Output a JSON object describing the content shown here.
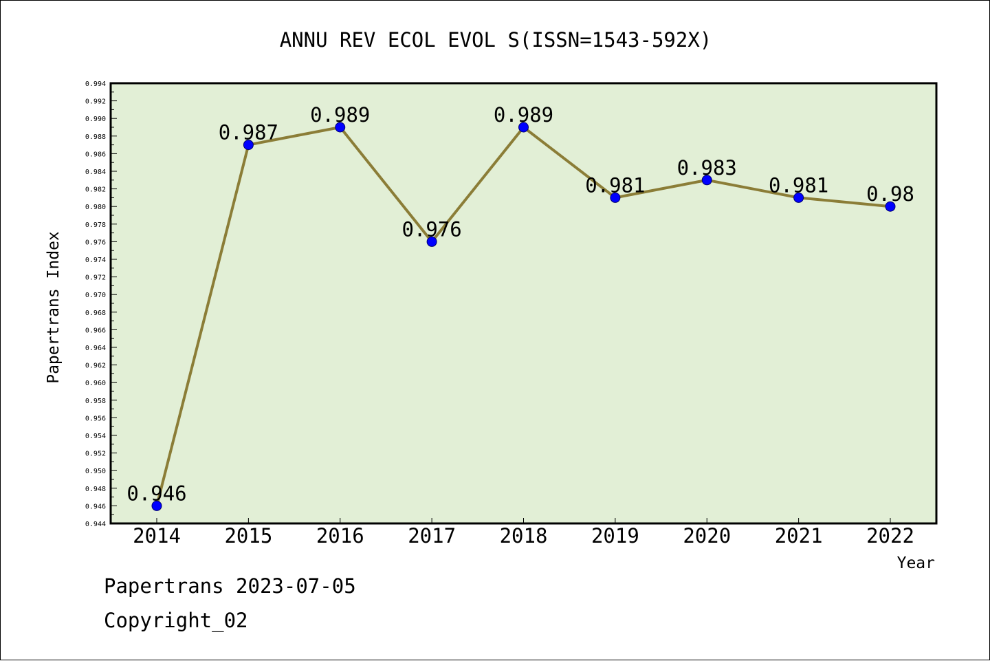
{
  "chart_data": {
    "type": "line",
    "title": "ANNU REV ECOL EVOL S(ISSN=1543-592X)",
    "xlabel": "Year",
    "ylabel": "Papertrans Index",
    "categories": [
      "2014",
      "2015",
      "2016",
      "2017",
      "2018",
      "2019",
      "2020",
      "2021",
      "2022"
    ],
    "values": [
      0.946,
      0.987,
      0.989,
      0.976,
      0.989,
      0.981,
      0.983,
      0.981,
      0.98
    ],
    "data_labels": [
      "0.946",
      "0.987",
      "0.989",
      "0.976",
      "0.989",
      "0.981",
      "0.983",
      "0.981",
      "0.98"
    ],
    "ylim": [
      0.944,
      0.994
    ],
    "ytick_step": 0.002,
    "y_tick_labels": [
      "0.944",
      "0.946",
      "0.948",
      "0.950",
      "0.952",
      "0.954",
      "0.956",
      "0.958",
      "0.960",
      "0.962",
      "0.964",
      "0.966",
      "0.968",
      "0.970",
      "0.972",
      "0.974",
      "0.976",
      "0.978",
      "0.980",
      "0.982",
      "0.984",
      "0.986",
      "0.988",
      "0.990",
      "0.992",
      "0.994"
    ],
    "grid": false,
    "legend": "none",
    "colors": {
      "plot_background": "#e2efd6",
      "line": "#8b7d37",
      "marker": "#0000ff",
      "marker_edge": "#00006e",
      "axis": "#000000"
    }
  },
  "footer": {
    "line1": "Papertrans 2023-07-05",
    "line2": "Copyright_02"
  }
}
